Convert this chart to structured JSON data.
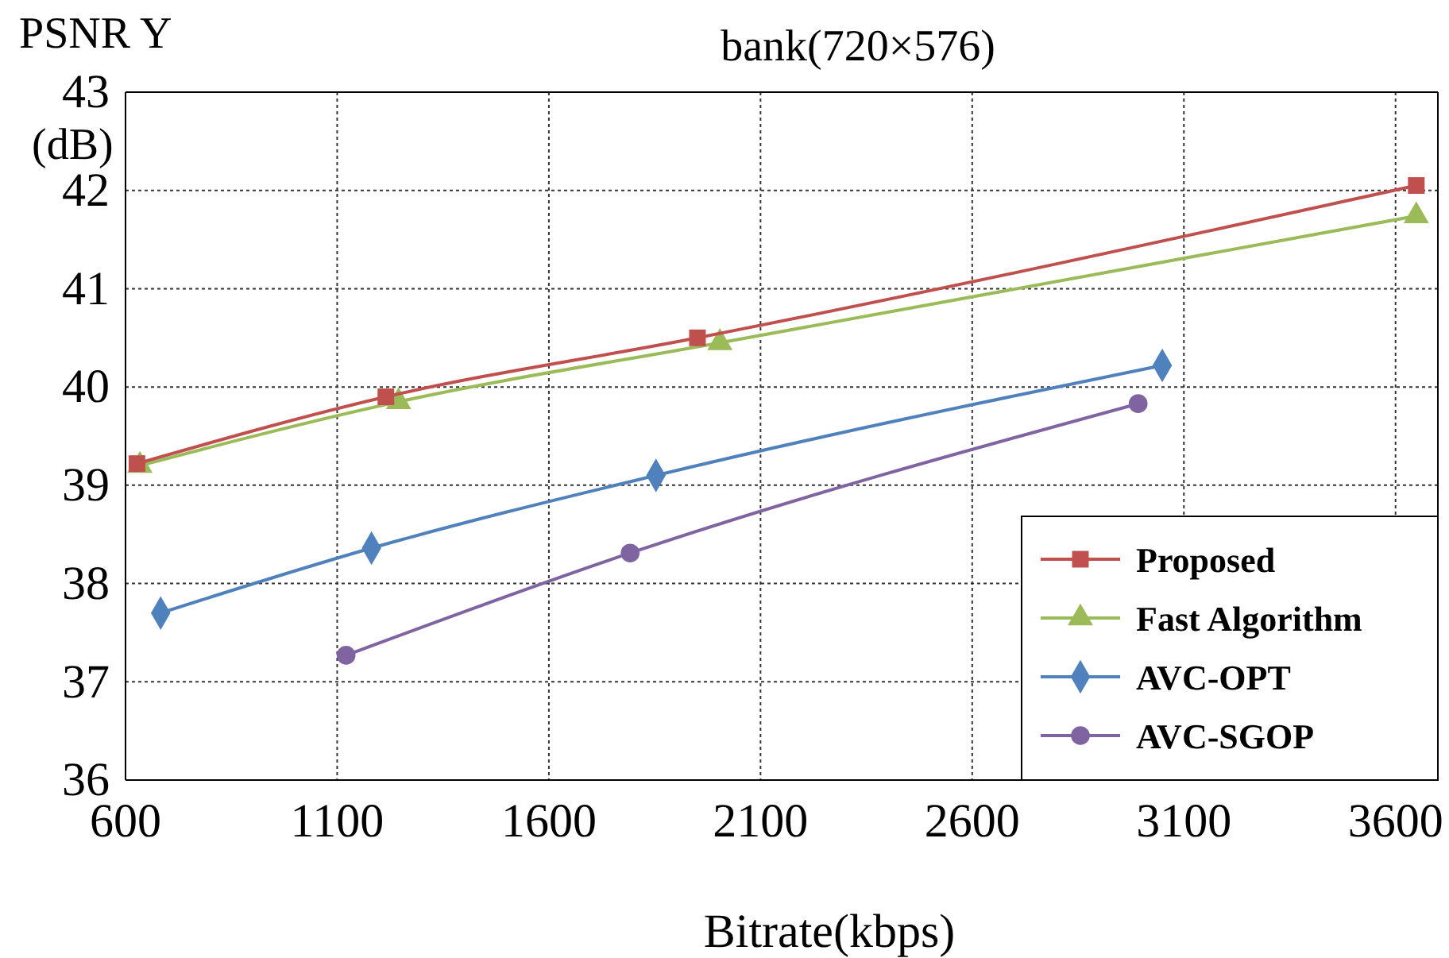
{
  "chart_data": {
    "type": "line",
    "title": "bank(720×576)",
    "xlabel": "Bitrate(kbps)",
    "ylabel": "PSNR Y (dB)",
    "xlim": [
      600,
      3700
    ],
    "xticks": [
      600,
      1100,
      1600,
      2100,
      2600,
      3100,
      3600
    ],
    "ylim": [
      36,
      43
    ],
    "yticks": [
      36,
      37,
      38,
      39,
      40,
      41,
      42,
      43
    ],
    "grid": true,
    "legend": "bottom right",
    "line_style": "solid",
    "series": [
      {
        "name": "Proposed",
        "color": "#c0504d",
        "marker": "square",
        "x": [
          627,
          1215,
          1951,
          3649
        ],
        "values": [
          39.22,
          39.9,
          40.5,
          42.05
        ]
      },
      {
        "name": "Fast Algorithm",
        "color": "#9bbb59",
        "marker": "triangle",
        "x": [
          634,
          1245,
          2004,
          3649
        ],
        "values": [
          39.2,
          39.85,
          40.45,
          41.74
        ]
      },
      {
        "name": "AVC-OPT",
        "color": "#4f81bd",
        "marker": "diamond",
        "x": [
          683,
          1181,
          1853,
          3049
        ],
        "values": [
          37.7,
          38.36,
          39.1,
          40.22
        ]
      },
      {
        "name": "AVC-SGOP",
        "color": "#8064a2",
        "marker": "circle",
        "x": [
          1121,
          1792,
          2992
        ],
        "values": [
          37.27,
          38.31,
          39.83
        ]
      }
    ]
  }
}
